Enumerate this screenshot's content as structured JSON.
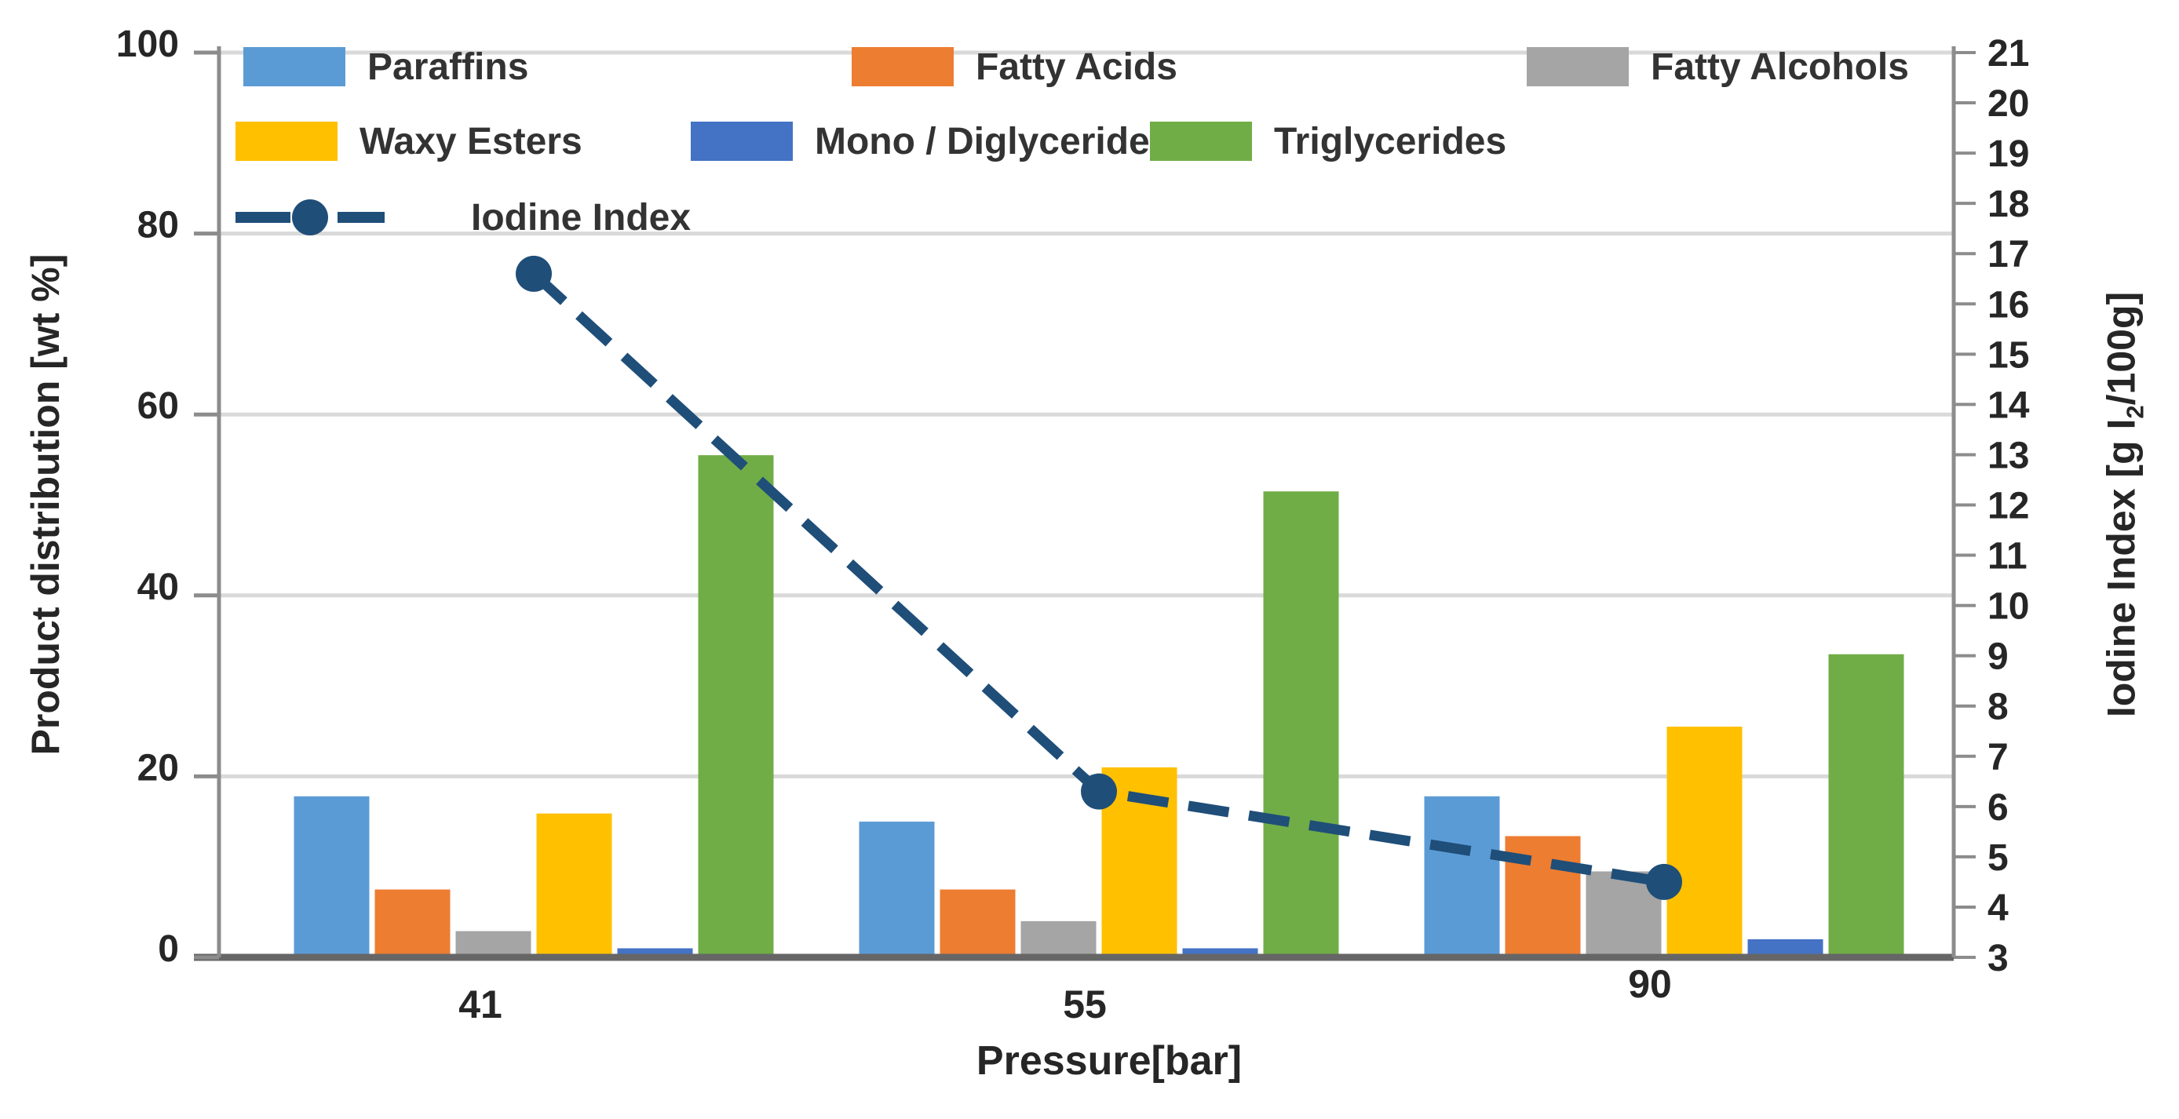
{
  "chart_data": {
    "type": "bar",
    "title": "",
    "categories": [
      "41",
      "55",
      "90"
    ],
    "xlabel": "Pressure[bar]",
    "grid": true,
    "legend_position": "top-left-inside",
    "left_axis": {
      "label": "Product distribution [wt %]",
      "min": 0,
      "max": 100,
      "ticks": [
        0,
        20,
        40,
        60,
        80,
        100
      ]
    },
    "right_axis": {
      "label_parts": {
        "prefix": "Iodine Index [g I",
        "sub": "2",
        "suffix": "/100g]"
      },
      "min": 3,
      "max": 21,
      "ticks": [
        3,
        4,
        5,
        6,
        7,
        8,
        9,
        10,
        11,
        12,
        13,
        14,
        15,
        16,
        17,
        18,
        19,
        20,
        21
      ]
    },
    "bar_series": [
      {
        "name": "Paraffins",
        "color": "#5B9BD5",
        "values": [
          17.8,
          15.0,
          17.8
        ]
      },
      {
        "name": "Fatty Acids",
        "color": "#ED7D31",
        "values": [
          7.5,
          7.5,
          13.4
        ]
      },
      {
        "name": "Fatty Alcohols",
        "color": "#A5A5A5",
        "values": [
          2.9,
          4.0,
          9.5
        ]
      },
      {
        "name": "Waxy Esters",
        "color": "#FFC000",
        "values": [
          15.9,
          21.0,
          25.5
        ]
      },
      {
        "name": "Mono / Diglycerides",
        "color": "#4472C4",
        "values": [
          1.0,
          1.0,
          2.0
        ]
      },
      {
        "name": "Triglycerides",
        "color": "#70AD47",
        "values": [
          55.5,
          51.5,
          33.5
        ]
      }
    ],
    "line_series": [
      {
        "name": "Iodine Index",
        "color": "#1F4E79",
        "axis": "right",
        "style": "dashed",
        "marker": "circle",
        "values": [
          16.6,
          6.3,
          4.5
        ]
      }
    ],
    "style_colors": {
      "gridline": "#D9D9D9",
      "axis_line": "#8C8C8C",
      "baseline": "#666666",
      "tick_text": "#262626"
    }
  }
}
